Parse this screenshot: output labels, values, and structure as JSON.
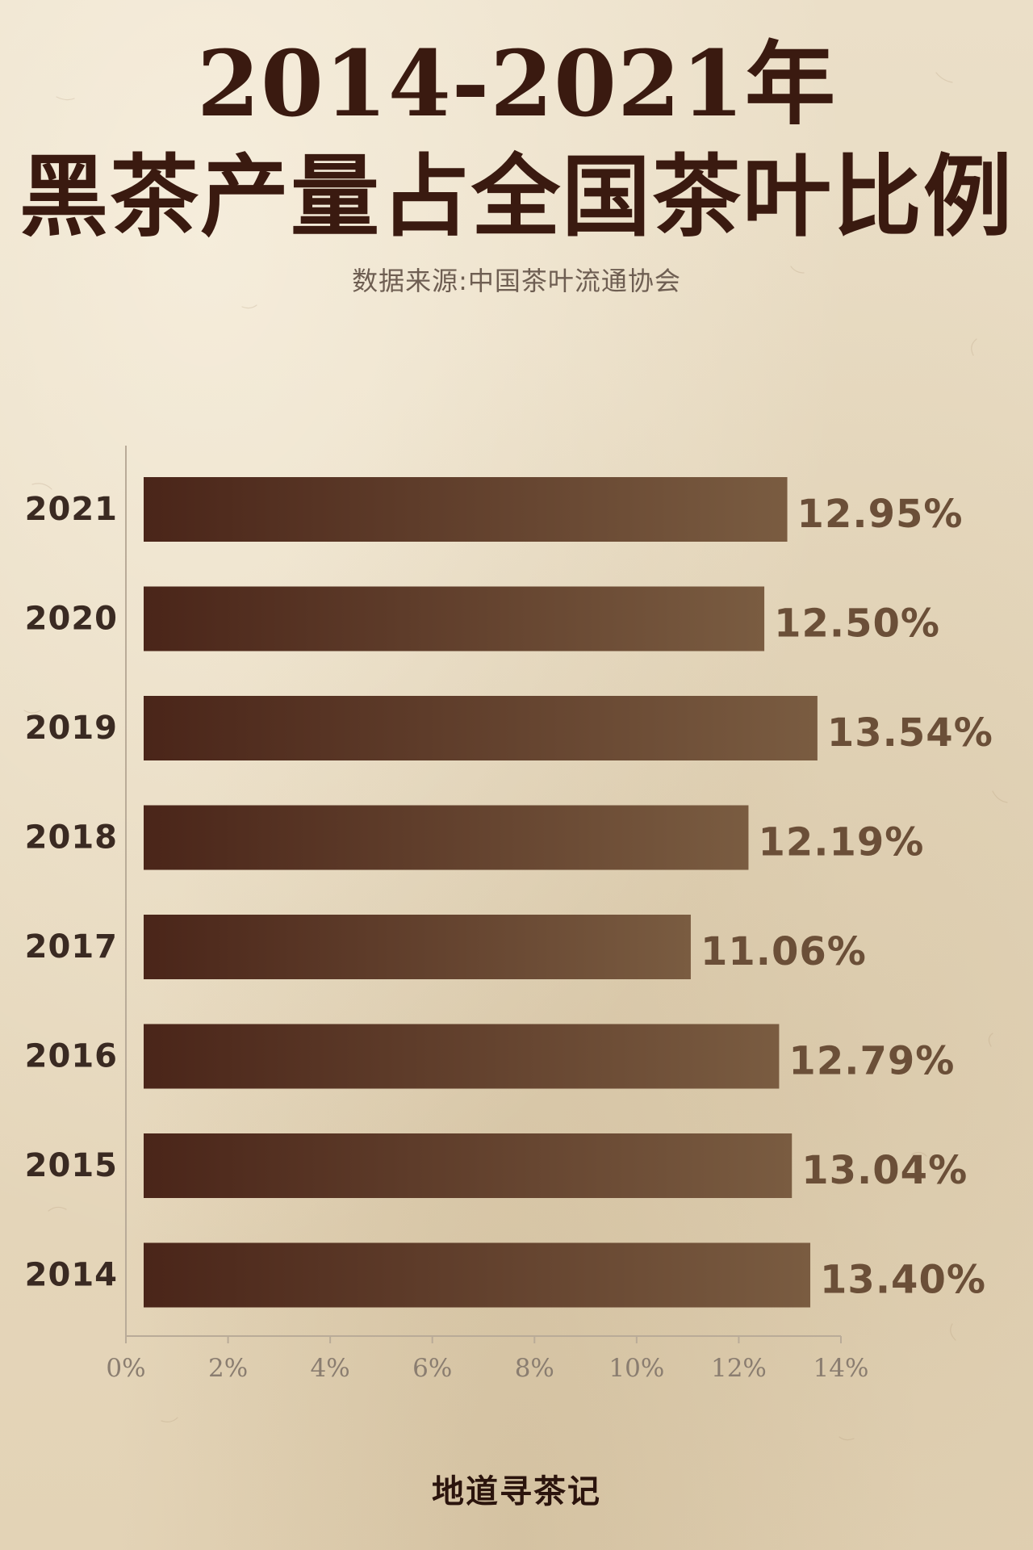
{
  "header": {
    "title_line1": "2014-2021年",
    "title_line2": "黑茶产量占全国茶叶比例",
    "source": "数据来源:中国茶叶流通协会"
  },
  "footer": {
    "brand": "地道寻茶记"
  },
  "colors": {
    "background": "#e9dcc4",
    "title": "#3a1a10",
    "bar_dark": "#4a2519",
    "bar_light": "#7a5c41",
    "value_label": "#6b4f38",
    "year_label": "#3a2a22",
    "axis": "#b9ab98",
    "tick_label": "#8a7d70"
  },
  "chart_data": {
    "type": "bar",
    "orientation": "horizontal",
    "categories": [
      "2021",
      "2020",
      "2019",
      "2018",
      "2017",
      "2016",
      "2015",
      "2014"
    ],
    "values": [
      12.95,
      12.5,
      13.54,
      12.19,
      11.06,
      12.79,
      13.04,
      13.4
    ],
    "value_labels": [
      "12.95%",
      "12.50%",
      "13.54%",
      "12.19%",
      "11.06%",
      "12.79%",
      "13.04%",
      "13.40%"
    ],
    "x_ticks": [
      0,
      2,
      4,
      6,
      8,
      10,
      12,
      14
    ],
    "x_tick_labels": [
      "0%",
      "2%",
      "4%",
      "6%",
      "8%",
      "10%",
      "12%",
      "14%"
    ],
    "xlim": [
      0,
      14
    ],
    "grid": false,
    "legend": "none",
    "title": "2014-2021年黑茶产量占全国茶叶比例",
    "xlabel": "",
    "ylabel": ""
  }
}
